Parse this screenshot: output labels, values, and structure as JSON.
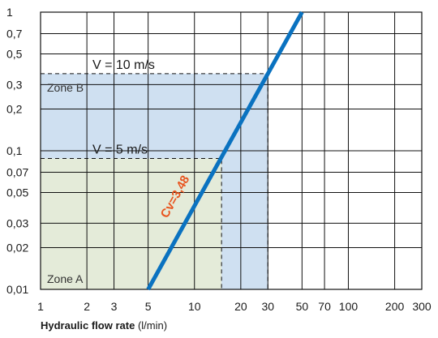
{
  "chart_data": {
    "type": "line",
    "x_scale": "log",
    "y_scale": "log",
    "xlim": [
      1,
      300
    ],
    "ylim": [
      0.01,
      1
    ],
    "x_ticks": [
      1,
      2,
      3,
      5,
      10,
      20,
      30,
      50,
      70,
      100,
      200,
      300
    ],
    "x_tick_labels": [
      "1",
      "2",
      "3",
      "5",
      "10",
      "20",
      "30",
      "50",
      "70",
      "100",
      "200",
      "300"
    ],
    "y_ticks": [
      0.01,
      0.02,
      0.03,
      0.05,
      0.07,
      0.1,
      0.2,
      0.3,
      0.5,
      0.7,
      1
    ],
    "y_tick_labels": [
      "0,01",
      "0,02",
      "0,03",
      "0,05",
      "0,07",
      "0,1",
      "0,2",
      "0,3",
      "0,5",
      "0,7",
      "1"
    ],
    "grid": true,
    "xlabel_bold": "Hydraulic flow rate",
    "xlabel_unit": "(l/min)",
    "ylabel": "",
    "series": [
      {
        "name": "Cv=3,48",
        "color": "#0a72c0",
        "x": [
          5,
          50
        ],
        "y": [
          0.01,
          1
        ]
      }
    ],
    "zones": [
      {
        "label": "Zone B",
        "color": "#cfe0f1",
        "x_max": 30,
        "y_max": 0.36
      },
      {
        "label": "Zone A",
        "color": "#e4ebd9",
        "x_max": 15,
        "y_max": 0.088
      }
    ],
    "velocity_lines": [
      {
        "label": "V = 10 m/s",
        "y": 0.36,
        "x_max": 30
      },
      {
        "label": "V = 5 m/s",
        "y": 0.088,
        "x_max": 15
      }
    ]
  }
}
